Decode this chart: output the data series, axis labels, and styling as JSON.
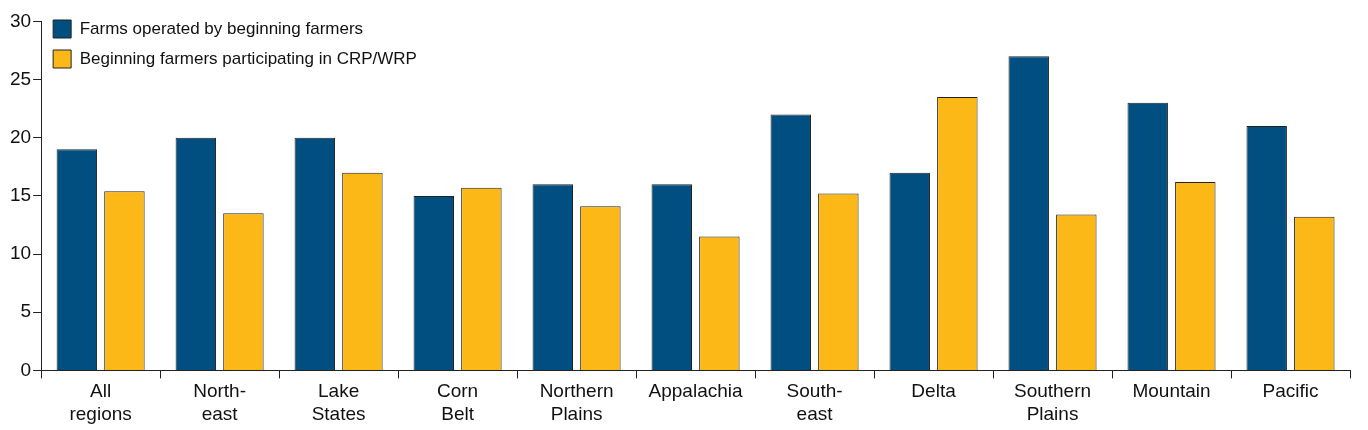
{
  "chart_data": {
    "type": "bar",
    "categories": [
      "All\nregions",
      "North-\neast",
      "Lake\nStates",
      "Corn\nBelt",
      "Northern\nPlains",
      "Appalachia",
      "South-\neast",
      "Delta",
      "Southern\nPlains",
      "Mountain",
      "Pacific"
    ],
    "series": [
      {
        "name": "Farms operated by beginning farmers",
        "color": "#004f80",
        "values": [
          19,
          20,
          20,
          15,
          16,
          16,
          22,
          17,
          27,
          23,
          21
        ]
      },
      {
        "name": "Beginning farmers participating in CRP/WRP",
        "color": "#fbb817",
        "values": [
          15.4,
          13.5,
          17,
          15.7,
          14.1,
          11.5,
          15.2,
          23.5,
          13.4,
          16.2,
          13.2
        ]
      }
    ],
    "ylim": [
      0,
      30
    ],
    "yticks": [
      0,
      5,
      10,
      15,
      20,
      25,
      30
    ],
    "grid": false,
    "legend": "top left"
  }
}
